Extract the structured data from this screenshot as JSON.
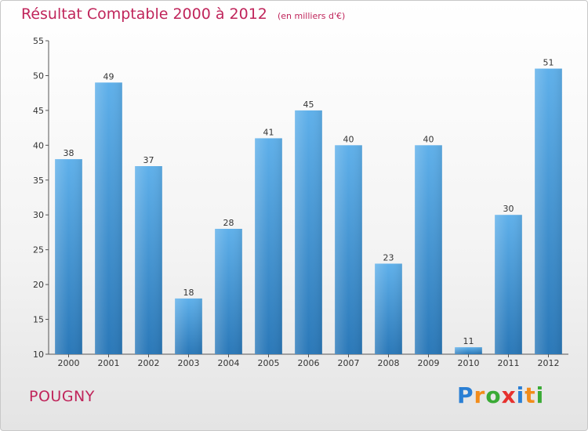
{
  "title": {
    "main": "Résultat Comptable 2000 à 2012",
    "unit": "(en milliers d'€)"
  },
  "commune": "POUGNY",
  "logo": {
    "text": "Proxiti",
    "letters": [
      "P",
      "r",
      "o",
      "x",
      "i",
      "t",
      "i"
    ],
    "colors": [
      "#2a7fd4",
      "#f28c1b",
      "#3aaa35",
      "#e6312e",
      "#2a7fd4",
      "#f28c1b",
      "#3aaa35"
    ]
  },
  "colors": {
    "bar_top": "#5fb0ea",
    "bar_bottom": "#2a78b8",
    "title": "#c0255b"
  },
  "chart_data": {
    "type": "bar",
    "title": "Résultat Comptable 2000 à 2012",
    "subtitle": "(en milliers d'€)",
    "xlabel": "",
    "ylabel": "",
    "categories": [
      "2000",
      "2001",
      "2002",
      "2003",
      "2004",
      "2005",
      "2006",
      "2007",
      "2008",
      "2009",
      "2010",
      "2011",
      "2012"
    ],
    "values": [
      38,
      49,
      37,
      18,
      28,
      41,
      45,
      40,
      23,
      40,
      11,
      30,
      51
    ],
    "ylim": [
      10,
      55
    ],
    "yticks": [
      10,
      15,
      20,
      25,
      30,
      35,
      40,
      45,
      50,
      55
    ],
    "grid": false
  }
}
